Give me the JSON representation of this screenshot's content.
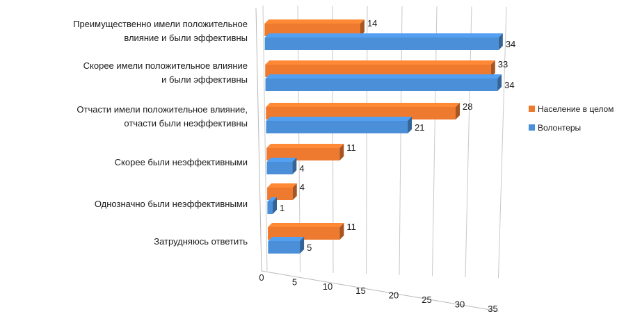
{
  "chart_data": {
    "type": "bar",
    "orientation": "horizontal",
    "categories": [
      [
        "Преимущественно имели положительное",
        "влияние и были эффективны"
      ],
      [
        "Скорее имели положительное влияние",
        "и были эффективны"
      ],
      [
        "Отчасти имели положительное влияние,",
        "отчасти были неэффективны"
      ],
      [
        "Скорее были неэффективными"
      ],
      [
        "Однозначно были неэффективными"
      ],
      [
        "Затрудняюсь ответить"
      ]
    ],
    "series": [
      {
        "name": "Население в целом",
        "color": "#ee7a2f",
        "values": [
          14,
          33,
          28,
          11,
          4,
          11
        ]
      },
      {
        "name": "Волонтеры",
        "color": "#4a8fd8",
        "values": [
          34,
          34,
          21,
          4,
          1,
          5
        ]
      }
    ],
    "xticks": [
      "0",
      "5",
      "10",
      "15",
      "20",
      "25",
      "30",
      "35"
    ],
    "xlim": [
      0,
      35
    ],
    "grid": true,
    "legend_position": "right"
  }
}
